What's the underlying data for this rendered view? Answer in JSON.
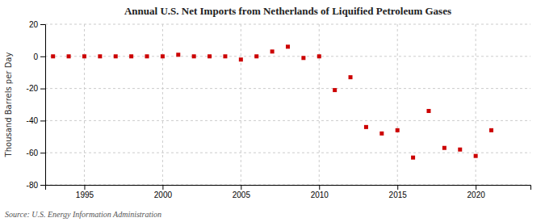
{
  "chart_data": {
    "type": "scatter",
    "title": "Annual U.S. Net Imports from Netherlands of Liquified Petroleum Gases",
    "ylabel": "Thousand Barrels per Day",
    "annotations": [
      "Source: U.S. Energy Information Administration"
    ],
    "x": [
      1993,
      1994,
      1995,
      1996,
      1997,
      1998,
      1999,
      2000,
      2001,
      2002,
      2003,
      2004,
      2005,
      2006,
      2007,
      2008,
      2009,
      2010,
      2011,
      2012,
      2013,
      2014,
      2015,
      2016,
      2017,
      2018,
      2019,
      2020,
      2021
    ],
    "values": [
      0,
      0,
      0,
      0,
      0,
      0,
      0,
      0,
      1,
      0,
      0,
      0,
      -2,
      0,
      3,
      6,
      -1,
      0,
      -21,
      -13,
      -44,
      -48,
      -46,
      -63,
      -34,
      -57,
      -58,
      -62,
      -46
    ],
    "color": "#cc0000",
    "marker": "square",
    "xlim": [
      1992.5,
      2023.5
    ],
    "ylim": [
      -80,
      20
    ],
    "xticks": [
      1995,
      2000,
      2005,
      2010,
      2015,
      2020
    ],
    "yticks": [
      -80,
      -60,
      -40,
      -20,
      0,
      20
    ],
    "grid": true
  }
}
